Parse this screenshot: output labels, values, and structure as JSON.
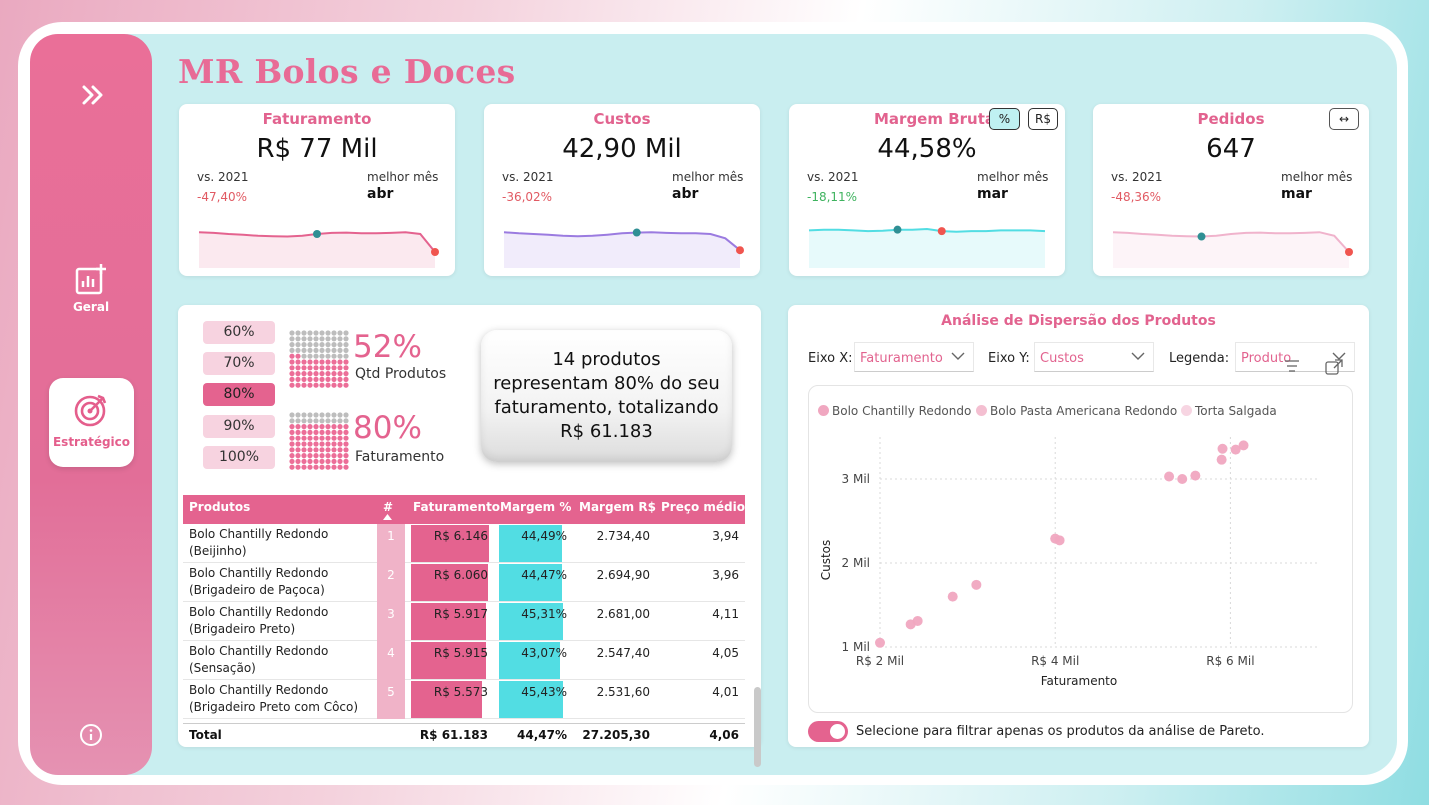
{
  "app": {
    "title": "MR Bolos e Doces"
  },
  "sidebar": {
    "expand_icon": "double-chevron-right-icon",
    "items": [
      {
        "label": "Geral",
        "icon": "chart-plus-icon",
        "active": false
      },
      {
        "label": "Estratégico",
        "icon": "target-icon",
        "active": true
      }
    ],
    "info_icon": "info-icon"
  },
  "kpis": [
    {
      "title": "Faturamento",
      "value": "R$ 77 Mil",
      "vs_label": "vs. 2021",
      "delta": "-47,40%",
      "best_label": "melhor mês",
      "best_value": "abr",
      "color": "#e4638f"
    },
    {
      "title": "Custos",
      "value": "42,90 Mil",
      "vs_label": "vs. 2021",
      "delta": "-36,02%",
      "best_label": "melhor mês",
      "best_value": "abr",
      "color": "#9b7be0"
    },
    {
      "title": "Margem Bruta",
      "value": "44,58%",
      "vs_label": "vs. 2021",
      "delta": "-18,11%",
      "best_label": "melhor mês",
      "best_value": "mar",
      "color": "#52dde3",
      "toggle_pct": "%",
      "toggle_rs": "R$"
    },
    {
      "title": "Pedidos",
      "value": "647",
      "vs_label": "vs. 2021",
      "delta": "-48,36%",
      "best_label": "melhor mês",
      "best_value": "mar",
      "color": "#f0b3cc",
      "toggle_icon": "↔"
    }
  ],
  "pareto": {
    "percent_options": [
      "60%",
      "70%",
      "80%",
      "90%",
      "100%"
    ],
    "selected": "80%",
    "qtd_pct": "52%",
    "qtd_label": "Qtd Produtos",
    "fat_pct": "80%",
    "fat_label": "Faturamento",
    "summary": "14 produtos representam 80% do seu faturamento, totalizando R$ 61.183"
  },
  "table": {
    "headers": {
      "produtos": "Produtos",
      "rank": "#",
      "faturamento": "Faturamento",
      "margem_pct": "Margem %",
      "margem_rs": "Margem R$",
      "preco_medio": "Preço médio"
    },
    "rows": [
      {
        "produto": "Bolo Chantilly Redondo (Beijinho)",
        "rank": "1",
        "faturamento": "R$ 6.146",
        "fat_ratio": 1.0,
        "margem_pct": "44,49%",
        "mar_ratio": 0.98,
        "margem_rs": "2.734,40",
        "preco_medio": "3,94"
      },
      {
        "produto": "Bolo Chantilly Redondo (Brigadeiro de Paçoca)",
        "rank": "2",
        "faturamento": "R$ 6.060",
        "fat_ratio": 0.986,
        "margem_pct": "44,47%",
        "mar_ratio": 0.98,
        "margem_rs": "2.694,90",
        "preco_medio": "3,96"
      },
      {
        "produto": "Bolo Chantilly Redondo (Brigadeiro Preto)",
        "rank": "3",
        "faturamento": "R$ 5.917",
        "fat_ratio": 0.963,
        "margem_pct": "45,31%",
        "mar_ratio": 1.0,
        "margem_rs": "2.681,00",
        "preco_medio": "4,11"
      },
      {
        "produto": "Bolo Chantilly Redondo (Sensação)",
        "rank": "4",
        "faturamento": "R$ 5.915",
        "fat_ratio": 0.962,
        "margem_pct": "43,07%",
        "mar_ratio": 0.95,
        "margem_rs": "2.547,40",
        "preco_medio": "4,05"
      },
      {
        "produto": "Bolo Chantilly Redondo (Brigadeiro Preto com Côco)",
        "rank": "5",
        "faturamento": "R$ 5.573",
        "fat_ratio": 0.907,
        "margem_pct": "45,43%",
        "mar_ratio": 1.0,
        "margem_rs": "2.531,60",
        "preco_medio": "4,01"
      }
    ],
    "total": {
      "label": "Total",
      "faturamento": "R$ 61.183",
      "margem_pct": "44,47%",
      "margem_rs": "27.205,30",
      "preco_medio": "4,06"
    }
  },
  "scatter": {
    "title": "Análise de Dispersão dos Produtos",
    "eixo_x_label": "Eixo X:",
    "eixo_x_value": "Faturamento",
    "eixo_y_label": "Eixo Y:",
    "eixo_y_value": "Custos",
    "legenda_label": "Legenda:",
    "legenda_value": "Produto",
    "legend": [
      {
        "name": "Bolo Chantilly Redondo",
        "color": "#f0a7c0"
      },
      {
        "name": "Bolo Pasta Americana Redondo",
        "color": "#f4bfd1"
      },
      {
        "name": "Torta Salgada",
        "color": "#f7d5e2"
      }
    ],
    "filter_label": "Selecione para filtrar apenas os produtos da análise de Pareto."
  },
  "chart_data": {
    "type": "scatter",
    "xlabel": "Faturamento",
    "ylabel": "Custos",
    "x_ticks": [
      "R$ 2 Mil",
      "R$ 4 Mil",
      "R$ 6 Mil"
    ],
    "y_ticks": [
      "1 Mil",
      "2 Mil",
      "3 Mil"
    ],
    "xlim": [
      2000,
      7000
    ],
    "ylim": [
      1000,
      3500
    ],
    "points": [
      {
        "x": 2000,
        "y": 1050
      },
      {
        "x": 2350,
        "y": 1270
      },
      {
        "x": 2430,
        "y": 1310
      },
      {
        "x": 2830,
        "y": 1600
      },
      {
        "x": 3100,
        "y": 1740
      },
      {
        "x": 4000,
        "y": 2290
      },
      {
        "x": 4050,
        "y": 2270
      },
      {
        "x": 5300,
        "y": 3030
      },
      {
        "x": 5450,
        "y": 3000
      },
      {
        "x": 5600,
        "y": 3040
      },
      {
        "x": 5900,
        "y": 3230
      },
      {
        "x": 5910,
        "y": 3360
      },
      {
        "x": 6060,
        "y": 3350
      },
      {
        "x": 6150,
        "y": 3400
      }
    ]
  },
  "sparklines": [
    [
      0.45,
      0.47,
      0.5,
      0.52,
      0.55,
      0.56,
      0.57,
      0.55,
      0.5,
      0.47,
      0.46,
      0.48,
      0.48,
      0.47,
      0.45,
      0.5,
      1.0
    ],
    [
      0.45,
      0.48,
      0.5,
      0.52,
      0.55,
      0.56,
      0.55,
      0.52,
      0.48,
      0.46,
      0.45,
      0.47,
      0.48,
      0.48,
      0.5,
      0.62,
      0.95
    ],
    [
      0.4,
      0.38,
      0.38,
      0.4,
      0.42,
      0.41,
      0.38,
      0.38,
      0.36,
      0.42,
      0.44,
      0.42,
      0.42,
      0.4,
      0.4,
      0.4,
      0.42
    ],
    [
      0.45,
      0.47,
      0.5,
      0.52,
      0.55,
      0.56,
      0.57,
      0.55,
      0.5,
      0.47,
      0.46,
      0.48,
      0.48,
      0.47,
      0.45,
      0.55,
      1.0
    ]
  ],
  "spark_markers": [
    {
      "best_index": 8,
      "last_index": 16
    },
    {
      "best_index": 9,
      "last_index": 16
    },
    {
      "best_index": 6,
      "last_index": 9
    },
    {
      "best_index": 6,
      "last_index": 16
    }
  ]
}
